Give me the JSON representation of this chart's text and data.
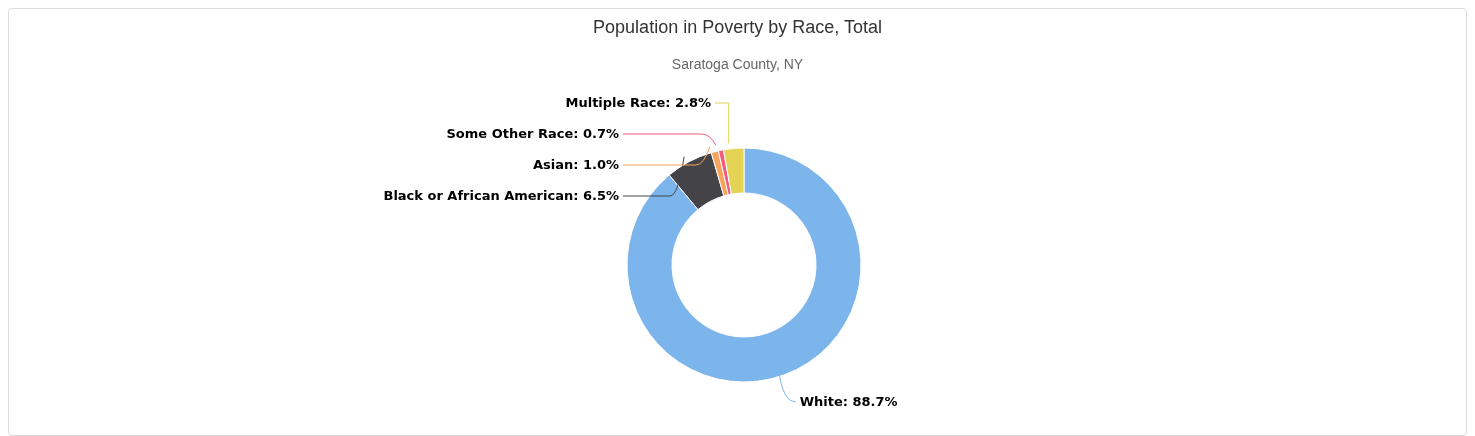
{
  "chart_data": {
    "type": "donut",
    "title": "Population in Poverty by Race, Total",
    "subtitle": "Saratoga County, NY",
    "categories": [
      "White",
      "Black or African American",
      "Asian",
      "Some Other Race",
      "Multiple Race"
    ],
    "values": [
      88.7,
      6.5,
      1.0,
      0.7,
      2.8
    ],
    "value_labels": [
      "88.7%",
      "6.5%",
      "1.0%",
      "0.7%",
      "2.8%"
    ],
    "colors": [
      "#7cb5ec",
      "#434348",
      "#f7a35c",
      "#f15c80",
      "#e4d354"
    ]
  }
}
